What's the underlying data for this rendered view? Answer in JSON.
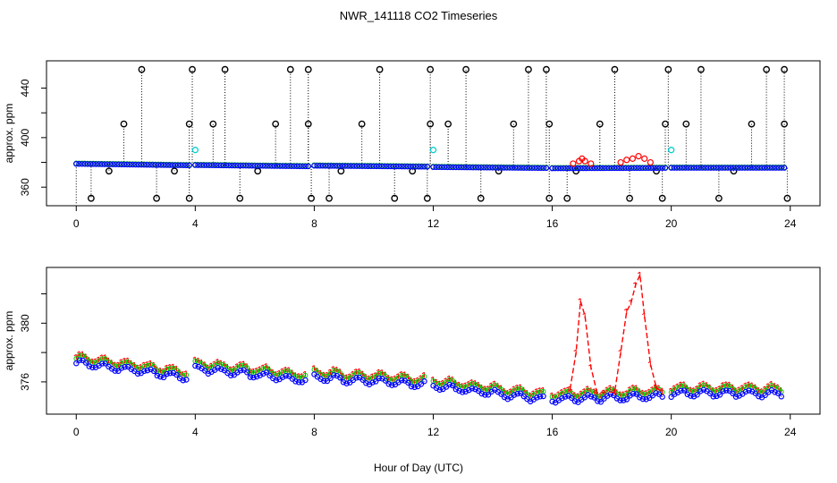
{
  "chart_data": {
    "title": "NWR_141118  CO2 Timeseries",
    "xlabel": "Hour of Day (UTC)",
    "x_ticks": [
      0,
      4,
      8,
      12,
      16,
      20,
      24
    ],
    "x_range": [
      -1,
      25
    ],
    "panels": [
      {
        "id": "top",
        "type": "scatter",
        "ylabel": "approx. ppm",
        "ylim": [
          345,
          462
        ],
        "y_ticks": [
          360,
          400,
          440
        ],
        "y_minor": [
          380,
          420
        ],
        "baseline_segments": [
          {
            "x0": 0.0,
            "x1": 3.8,
            "y0": 378.8,
            "y1": 377.6
          },
          {
            "x0": 4.0,
            "x1": 7.8,
            "y0": 377.8,
            "y1": 376.8
          },
          {
            "x0": 8.0,
            "x1": 11.8,
            "y0": 377.3,
            "y1": 376.5
          },
          {
            "x0": 12.0,
            "x1": 15.8,
            "y0": 376.2,
            "y1": 375.4
          },
          {
            "x0": 16.0,
            "x1": 19.8,
            "y0": 375.2,
            "y1": 375.5
          },
          {
            "x0": 20.0,
            "x1": 23.8,
            "y0": 375.6,
            "y1": 375.6
          }
        ],
        "spikes_high": [
          2.2,
          3.9,
          5.0,
          7.2,
          7.8,
          10.2,
          11.9,
          13.1,
          15.2,
          15.8,
          18.1,
          19.9,
          21.0,
          23.2,
          23.8
        ],
        "spikes_mid": [
          1.6,
          3.8,
          4.6,
          6.7,
          7.8,
          9.6,
          11.9,
          12.5,
          14.7,
          15.9,
          17.6,
          19.8,
          20.5,
          22.7,
          23.8
        ],
        "spikes_low": [
          0.5,
          2.7,
          3.8,
          5.5,
          7.9,
          8.5,
          10.7,
          11.8,
          13.6,
          15.9,
          16.5,
          18.6,
          19.7,
          21.6,
          23.9
        ],
        "spikes_small": [
          1.1,
          3.3,
          6.1,
          8.9,
          11.3,
          14.2,
          16.8,
          19.5,
          22.1
        ],
        "cyan_points": [
          {
            "x": 4.0,
            "y": 390
          },
          {
            "x": 12.0,
            "y": 390
          },
          {
            "x": 20.0,
            "y": 390
          }
        ],
        "red_bumps": [
          {
            "x": 16.7,
            "y": 379
          },
          {
            "x": 16.9,
            "y": 381
          },
          {
            "x": 17.0,
            "y": 383
          },
          {
            "x": 17.1,
            "y": 381
          },
          {
            "x": 17.3,
            "y": 379
          },
          {
            "x": 18.3,
            "y": 380
          },
          {
            "x": 18.5,
            "y": 382
          },
          {
            "x": 18.7,
            "y": 383
          },
          {
            "x": 18.9,
            "y": 385
          },
          {
            "x": 19.1,
            "y": 383
          },
          {
            "x": 19.3,
            "y": 380
          }
        ]
      },
      {
        "id": "bottom",
        "type": "line",
        "ylabel": "approx. ppm",
        "ylim": [
          373.8,
          383.8
        ],
        "y_ticks": [
          376,
          380
        ],
        "y_minor": [
          378,
          382
        ],
        "series": [
          {
            "name": "blue",
            "color": "#0000ff",
            "marker": "o"
          },
          {
            "name": "green",
            "color": "#00cc00",
            "marker": "o"
          },
          {
            "name": "red",
            "color": "#ff0000",
            "marker": "1",
            "dashed": true
          }
        ],
        "segments": [
          {
            "x0": 0.0,
            "x1": 3.7,
            "y0": 377.3,
            "y1": 376.3
          },
          {
            "x0": 4.0,
            "x1": 7.7,
            "y0": 376.9,
            "y1": 376.1
          },
          {
            "x0": 8.0,
            "x1": 11.7,
            "y0": 376.3,
            "y1": 375.8
          },
          {
            "x0": 12.0,
            "x1": 15.7,
            "y0": 375.7,
            "y1": 374.8
          },
          {
            "x0": 16.0,
            "x1": 19.7,
            "y0": 374.8,
            "y1": 375.0
          },
          {
            "x0": 20.0,
            "x1": 23.7,
            "y0": 375.2,
            "y1": 375.2
          }
        ],
        "red_peaks": [
          {
            "x": 16.6,
            "y": 375.5
          },
          {
            "x": 16.8,
            "y": 378.0
          },
          {
            "x": 16.95,
            "y": 381.5
          },
          {
            "x": 17.1,
            "y": 380.5
          },
          {
            "x": 17.3,
            "y": 377.0
          },
          {
            "x": 17.5,
            "y": 375.3
          },
          {
            "x": 18.1,
            "y": 375.3
          },
          {
            "x": 18.3,
            "y": 378.0
          },
          {
            "x": 18.5,
            "y": 380.8
          },
          {
            "x": 18.65,
            "y": 381.4
          },
          {
            "x": 18.8,
            "y": 382.6
          },
          {
            "x": 18.95,
            "y": 383.3
          },
          {
            "x": 19.1,
            "y": 380.5
          },
          {
            "x": 19.3,
            "y": 377.2
          },
          {
            "x": 19.5,
            "y": 375.6
          },
          {
            "x": 19.7,
            "y": 375.3
          }
        ]
      }
    ]
  }
}
